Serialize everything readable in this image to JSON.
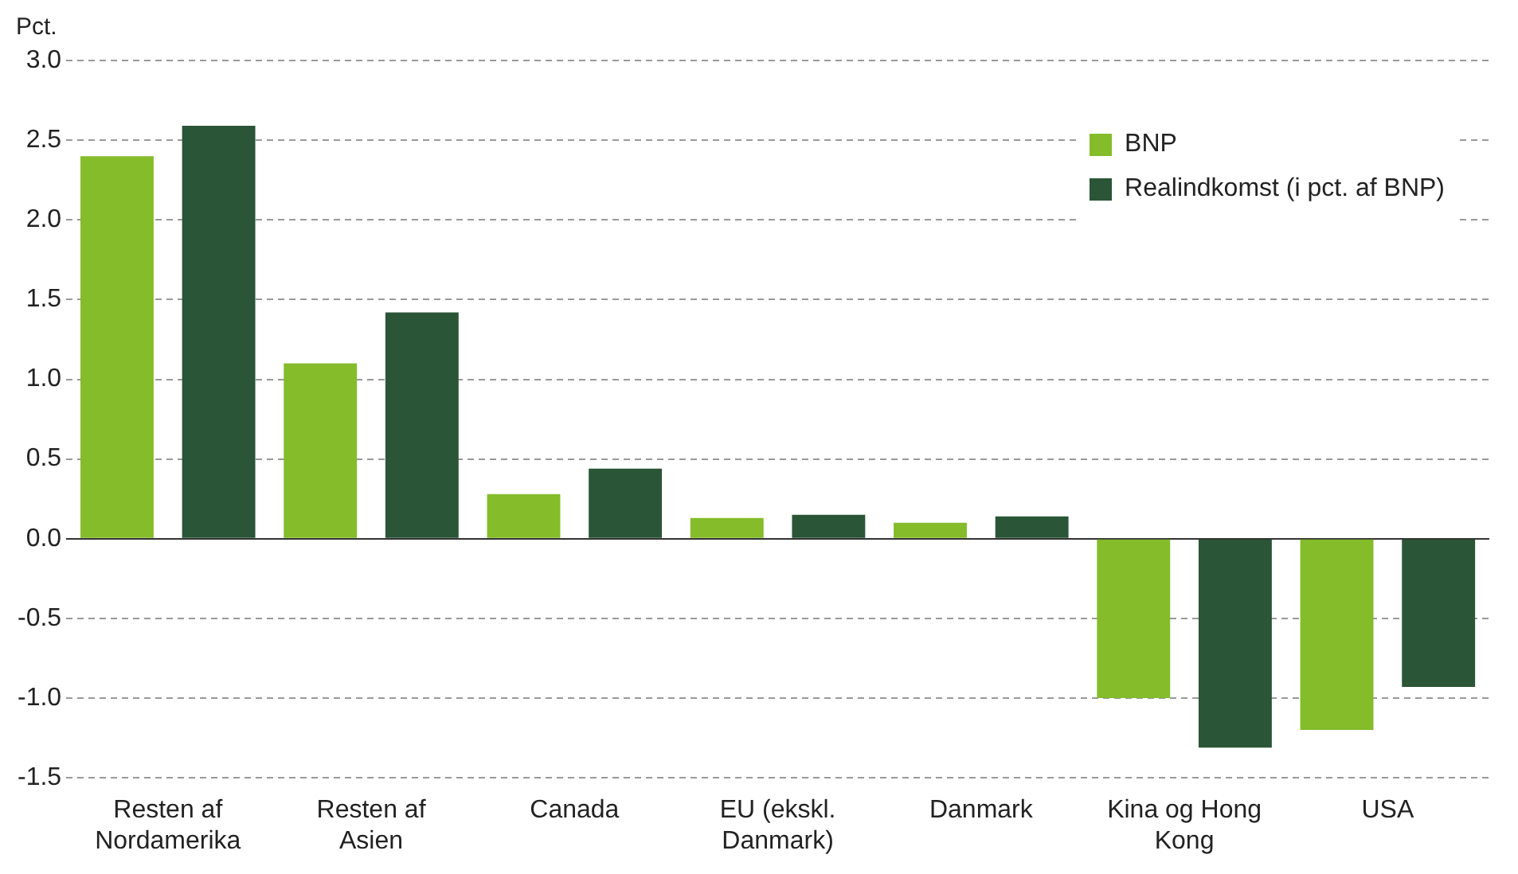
{
  "chart_data": {
    "type": "bar",
    "ylabel": "Pct.",
    "categories": [
      "Resten af Nordamerika",
      "Resten af Asien",
      "Canada",
      "EU (ekskl. Danmark)",
      "Danmark",
      "Kina og Hong Kong",
      "USA"
    ],
    "series": [
      {
        "name": "BNP",
        "color": "#84bc2a",
        "values": [
          2.4,
          1.1,
          0.28,
          0.13,
          0.1,
          -1.0,
          -1.2
        ]
      },
      {
        "name": "Realindkomst (i pct. af BNP)",
        "color": "#2a5536",
        "values": [
          2.59,
          1.42,
          0.44,
          0.15,
          0.14,
          -1.31,
          -0.93
        ]
      }
    ],
    "ylim": [
      -1.5,
      3.0
    ],
    "yticks": [
      -1.5,
      {
        "value": -1,
        "label": "-1.0"
      },
      -0.5,
      {
        "value": 0,
        "label": "0.0"
      },
      0.5,
      {
        "value": 1,
        "label": "1.0"
      },
      1.5,
      {
        "value": 2,
        "label": "2.0"
      },
      2.5,
      {
        "value": 3,
        "label": "3.0"
      }
    ],
    "grid": "y",
    "legend": "top right"
  }
}
